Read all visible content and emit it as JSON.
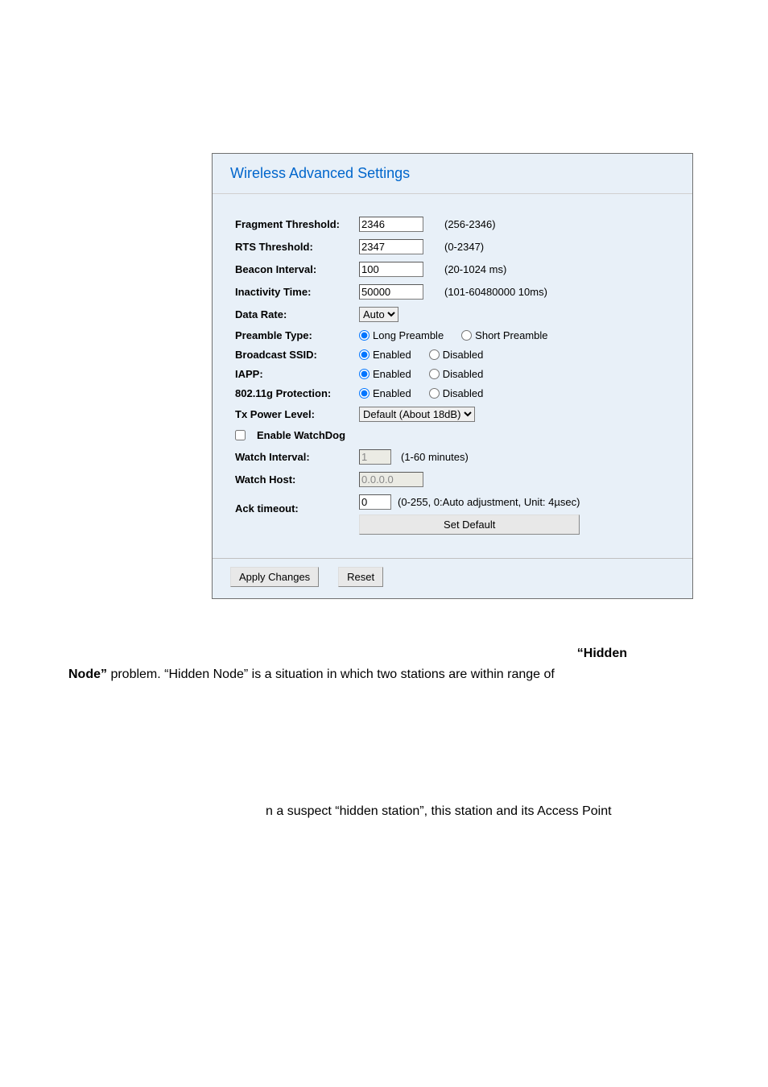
{
  "panel": {
    "title": "Wireless Advanced Settings",
    "fields": {
      "fragment": {
        "label": "Fragment Threshold:",
        "value": "2346",
        "hint": "(256-2346)"
      },
      "rts": {
        "label": "RTS Threshold:",
        "value": "2347",
        "hint": "(0-2347)"
      },
      "beacon": {
        "label": "Beacon Interval:",
        "value": "100",
        "hint": "(20-1024 ms)"
      },
      "inactivity": {
        "label": "Inactivity Time:",
        "value": "50000",
        "hint": "(101-60480000 10ms)"
      },
      "datarate": {
        "label": "Data Rate:",
        "selected": "Auto"
      },
      "preamble": {
        "label": "Preamble Type:",
        "opt1": "Long Preamble",
        "opt2": "Short Preamble"
      },
      "ssid": {
        "label": "Broadcast SSID:",
        "opt1": "Enabled",
        "opt2": "Disabled"
      },
      "iapp": {
        "label": "IAPP:",
        "opt1": "Enabled",
        "opt2": "Disabled"
      },
      "gprot": {
        "label": "802.11g Protection:",
        "opt1": "Enabled",
        "opt2": "Disabled"
      },
      "txpower": {
        "label": "Tx Power Level:",
        "selected": "Default (About 18dB)"
      },
      "watchdog": {
        "label": "Enable WatchDog"
      },
      "watchint": {
        "label": "Watch Interval:",
        "value": "1",
        "hint": "(1-60 minutes)"
      },
      "watchhost": {
        "label": "Watch Host:",
        "value": "0.0.0.0"
      },
      "ack": {
        "label": "Ack timeout:",
        "value": "0",
        "hint": "(0-255, 0:Auto adjustment, Unit: 4µsec)",
        "btn": "Set Default"
      }
    },
    "buttons": {
      "apply": "Apply Changes",
      "reset": "Reset"
    }
  },
  "paragraph": {
    "hidden_bold": "“Hidden",
    "node_bold": "Node”",
    "line1_rest": " problem. “Hidden Node” is a situation in which two stations are within range of",
    "line2": "n a suspect “hidden station”, this station and its Access Point"
  }
}
